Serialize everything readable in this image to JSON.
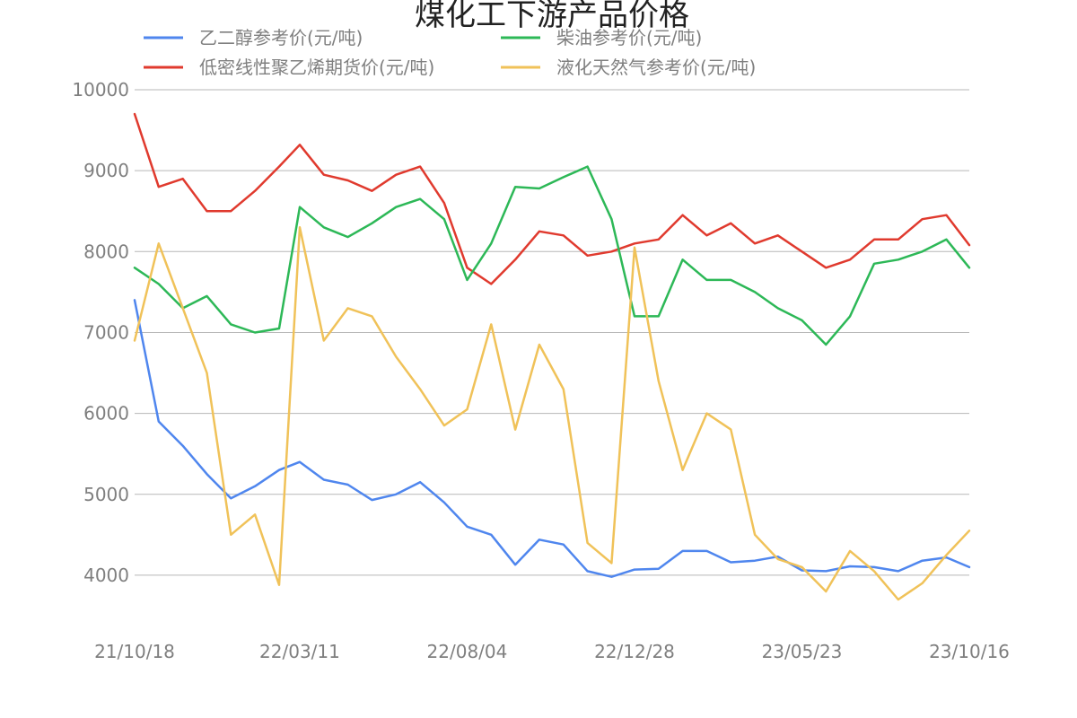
{
  "chart_data": {
    "type": "line",
    "title": "煤化工下游产品价格",
    "xlabel": "",
    "ylabel": "",
    "ylim": [
      3500,
      10000
    ],
    "yticks": [
      4000,
      5000,
      6000,
      7000,
      8000,
      9000,
      10000
    ],
    "x_tick_labels": [
      "21/10/18",
      "22/03/11",
      "22/08/04",
      "22/12/28",
      "23/05/23",
      "23/10/16"
    ],
    "x_tick_dates": [
      "2021-10-18",
      "2022-03-11",
      "2022-08-04",
      "2022-12-28",
      "2023-05-23",
      "2023-10-16"
    ],
    "grid": true,
    "legend_position": "top",
    "x": [
      "2021-10-18",
      "2021-11-08",
      "2021-11-29",
      "2021-12-20",
      "2022-01-10",
      "2022-01-31",
      "2022-02-21",
      "2022-03-11",
      "2022-04-01",
      "2022-04-22",
      "2022-05-13",
      "2022-06-03",
      "2022-06-24",
      "2022-07-15",
      "2022-08-04",
      "2022-08-25",
      "2022-09-15",
      "2022-10-06",
      "2022-10-27",
      "2022-11-17",
      "2022-12-08",
      "2022-12-28",
      "2023-01-18",
      "2023-02-08",
      "2023-03-01",
      "2023-03-22",
      "2023-04-12",
      "2023-05-02",
      "2023-05-23",
      "2023-06-13",
      "2023-07-04",
      "2023-07-25",
      "2023-08-15",
      "2023-09-05",
      "2023-09-26",
      "2023-10-16"
    ],
    "series": [
      {
        "name": "乙二醇参考价(元/吨)",
        "color": "#4f86ee",
        "values": [
          7400,
          5900,
          5600,
          5250,
          4950,
          5100,
          5300,
          5400,
          5180,
          5120,
          4930,
          5000,
          5150,
          4900,
          4600,
          4500,
          4130,
          4440,
          4380,
          4050,
          3980,
          4070,
          4080,
          4300,
          4300,
          4160,
          4180,
          4230,
          4060,
          4050,
          4110,
          4100,
          4050,
          4180,
          4220,
          4100
        ]
      },
      {
        "name": "低密线性聚乙烯期货价(元/吨)",
        "color": "#e03a2e",
        "values": [
          9700,
          8800,
          8900,
          8500,
          8500,
          8750,
          9050,
          9320,
          8950,
          8880,
          8750,
          8950,
          9050,
          8600,
          7800,
          7600,
          7900,
          8250,
          8200,
          7950,
          8000,
          8100,
          8150,
          8450,
          8200,
          8350,
          8100,
          8200,
          8000,
          7800,
          7900,
          8150,
          8150,
          8400,
          8450,
          8080
        ]
      },
      {
        "name": "柴油参考价(元/吨)",
        "color": "#2db857",
        "values": [
          7800,
          7600,
          7300,
          7450,
          7100,
          7000,
          7050,
          8550,
          8300,
          8180,
          8350,
          8550,
          8650,
          8400,
          7650,
          8100,
          8800,
          8780,
          8920,
          9050,
          8400,
          7200,
          7200,
          7900,
          7650,
          7650,
          7500,
          7300,
          7150,
          6850,
          7200,
          7850,
          7900,
          8000,
          8150,
          7800
        ]
      },
      {
        "name": "液化天然气参考价(元/吨)",
        "color": "#f0c259",
        "values": [
          6900,
          8100,
          7300,
          6500,
          4500,
          4750,
          3880,
          8300,
          6900,
          7300,
          7200,
          6700,
          6300,
          5850,
          6050,
          7100,
          5800,
          6850,
          6300,
          4400,
          4150,
          8050,
          6400,
          5300,
          6000,
          5800,
          4500,
          4200,
          4100,
          3800,
          4300,
          4050,
          3700,
          3900,
          4250,
          4550
        ]
      }
    ]
  }
}
